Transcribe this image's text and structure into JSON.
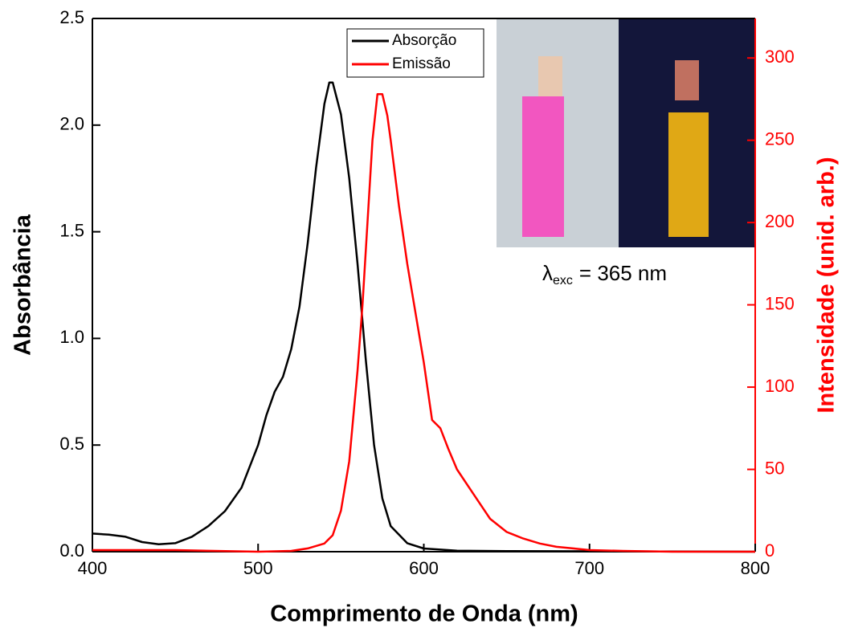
{
  "chart_data": {
    "type": "line",
    "xlabel": "Comprimento de Onda (nm)",
    "ylabel": "Absorbância",
    "y2label": "Intensidade (unid. arb.)",
    "xlim": [
      400,
      800
    ],
    "xticks": [
      400,
      500,
      600,
      700,
      800
    ],
    "ylim": [
      0,
      2.5
    ],
    "yticks": [
      {
        "value": 0,
        "label": "0.0"
      },
      0.5,
      {
        "value": 1,
        "label": "1.0"
      },
      1.5,
      {
        "value": 2,
        "label": "2.0"
      },
      2.5
    ],
    "y2lim": [
      0,
      324
    ],
    "y2ticks": [
      0,
      50,
      100,
      150,
      200,
      250,
      300
    ],
    "y2color": "#ff0000",
    "legend": "top-center",
    "annotation": {
      "symbol": "λ",
      "subscript": "exc",
      "text": "= 365 nm"
    },
    "series": [
      {
        "name": "Absorção",
        "color": "#000000",
        "x": [
          400,
          410,
          420,
          430,
          440,
          450,
          460,
          470,
          480,
          490,
          500,
          505,
          510,
          515,
          520,
          525,
          530,
          535,
          540,
          543,
          545,
          550,
          555,
          560,
          565,
          570,
          575,
          580,
          590,
          600,
          620,
          650,
          700,
          800
        ],
        "values": [
          0.085,
          0.08,
          0.07,
          0.045,
          0.035,
          0.04,
          0.07,
          0.12,
          0.19,
          0.3,
          0.5,
          0.64,
          0.75,
          0.82,
          0.95,
          1.15,
          1.45,
          1.8,
          2.1,
          2.2,
          2.2,
          2.05,
          1.75,
          1.35,
          0.9,
          0.5,
          0.25,
          0.12,
          0.04,
          0.015,
          0.005,
          0.003,
          0.002,
          0
        ]
      },
      {
        "name": "Emissão",
        "color": "#ff0000",
        "axis": "y2",
        "x": [
          400,
          450,
          500,
          520,
          530,
          540,
          545,
          550,
          555,
          560,
          563,
          566,
          569,
          572,
          575,
          578,
          580,
          585,
          590,
          595,
          600,
          605,
          610,
          615,
          620,
          630,
          640,
          650,
          660,
          670,
          680,
          690,
          700,
          720,
          750,
          800
        ],
        "values": [
          1,
          1,
          0,
          0.5,
          2,
          5,
          10,
          25,
          55,
          110,
          150,
          200,
          250,
          278,
          278,
          265,
          250,
          210,
          175,
          145,
          115,
          80,
          75,
          62,
          50,
          35,
          20,
          12,
          8,
          5,
          3,
          2,
          1,
          0.5,
          0,
          0
        ]
      }
    ]
  }
}
